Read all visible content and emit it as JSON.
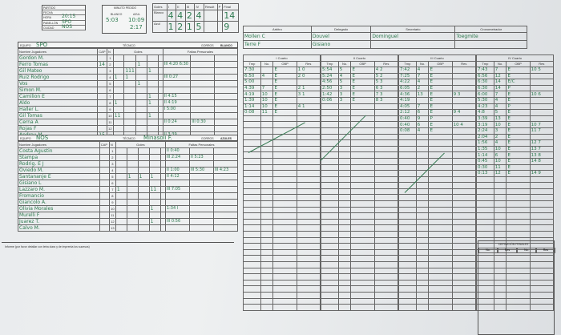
{
  "header": {
    "match_box": {
      "labels": [
        "Partido",
        "Fecha",
        "Hora",
        "Pabellón",
        "Ciudad"
      ],
      "values": [
        "",
        "",
        "20:15",
        "SPO",
        "NOS"
      ]
    },
    "tiempo_muerto": {
      "title": "Minuto Pedido",
      "cols": [
        "Blanco",
        "Azul"
      ],
      "values": [
        "5:03",
        "10:09",
        "",
        "2:17"
      ]
    },
    "goles": {
      "cols": [
        "Goles",
        "I",
        "II",
        "III",
        "IV",
        "Result",
        "P",
        "Final"
      ],
      "rows": [
        {
          "team": "Blanco",
          "q": [
            "4",
            "4",
            "2",
            "4"
          ],
          "final": "14"
        },
        {
          "team": "Azul",
          "q": [
            "1",
            "2",
            "1",
            "5"
          ],
          "final": "9"
        }
      ]
    }
  },
  "officials": {
    "cols": [
      "Arbitro",
      "Delegado",
      "Secretario",
      "Cronometrador"
    ],
    "values": [
      "Mollen C",
      "Douvel",
      "Dominguel",
      "Toegmite"
    ],
    "values2": [
      "Terre F",
      "Gisiano",
      "",
      ""
    ]
  },
  "team1": {
    "equipo_label": "Equipo",
    "name": "SPO",
    "tecnico_label": "Técnico",
    "tecnico": "",
    "gorros_label": "Gorros",
    "gorros": "Blanco",
    "headers": {
      "name": "Nombre Jugadores",
      "cap": "CAP",
      "n": "N",
      "goles": "Goles",
      "faltas": "Faltas Personales",
      "q": [
        "I",
        "II",
        "III",
        "IV",
        "P"
      ],
      "f": [
        "1",
        "2",
        "3"
      ]
    },
    "players": [
      {
        "n": "1",
        "name": "Gordon M.",
        "cap": "",
        "goals": [
          "",
          "",
          "",
          "",
          ""
        ],
        "fouls": [
          "",
          "",
          ""
        ]
      },
      {
        "n": "2",
        "name": "Ferro Tomas",
        "cap": "14",
        "goals": [
          "",
          "",
          "1",
          "",
          ""
        ],
        "fouls": [
          "III 4:20 6:30",
          "",
          ""
        ]
      },
      {
        "n": "3",
        "name": "Gil Mateo",
        "cap": "",
        "goals": [
          "",
          "111",
          "",
          "1",
          ""
        ],
        "fouls": [
          "",
          "",
          ""
        ]
      },
      {
        "n": "4",
        "name": "Ruiz Rodrigo",
        "cap": "",
        "goals": [
          "1",
          "1",
          "",
          "",
          ""
        ],
        "fouls": [
          "III 0:27",
          "",
          ""
        ]
      },
      {
        "n": "5",
        "name": "Vos",
        "cap": "",
        "goals": [
          "",
          "",
          "1",
          "",
          ""
        ],
        "fouls": [
          "",
          "",
          ""
        ]
      },
      {
        "n": "6",
        "name": "Simon M.",
        "cap": "",
        "goals": [
          "",
          "",
          "",
          "",
          ""
        ],
        "fouls": [
          "",
          "",
          ""
        ]
      },
      {
        "n": "7",
        "name": "Camilion E",
        "cap": "",
        "goals": [
          "",
          "",
          "",
          "1",
          ""
        ],
        "fouls": [
          "II 4:15",
          "",
          ""
        ]
      },
      {
        "n": "8",
        "name": "Aldo",
        "cap": "",
        "goals": [
          "1",
          "",
          "",
          "1",
          ""
        ],
        "fouls": [
          "II 4:19",
          "",
          ""
        ]
      },
      {
        "n": "9",
        "name": "Haller L.",
        "cap": "",
        "goals": [
          "",
          "",
          "",
          "",
          ""
        ],
        "fouls": [
          "I 5:00",
          "",
          ""
        ]
      },
      {
        "n": "10",
        "name": "Gil Tomas",
        "cap": "",
        "goals": [
          "11",
          "",
          "",
          "1",
          ""
        ],
        "fouls": [
          "",
          "",
          ""
        ]
      },
      {
        "n": "11",
        "name": "Cerna A",
        "cap": "",
        "goals": [
          "",
          "",
          "",
          "",
          ""
        ],
        "fouls": [
          "II 0:24",
          "III 0:30",
          ""
        ]
      },
      {
        "n": "12",
        "name": "Rojas F",
        "cap": "",
        "goals": [
          "",
          "",
          "",
          "",
          ""
        ],
        "fouls": [
          "",
          "",
          ""
        ]
      },
      {
        "n": "13",
        "name": "Andreu M.",
        "cap": "15",
        "goals": [
          "",
          "",
          "",
          "",
          ""
        ],
        "fouls": [
          "II 3:39",
          "",
          ""
        ]
      }
    ]
  },
  "team2": {
    "equipo_label": "Equipo",
    "name": "NOS",
    "tecnico_label": "Técnico",
    "tecnico": "Minasoli F.",
    "gorros_label": "Gorros",
    "gorros": "Azules",
    "players": [
      {
        "n": "1",
        "name": "Costa Agustin",
        "cap": "",
        "goals": [
          "",
          "",
          "",
          "",
          ""
        ],
        "fouls": [
          "II 0:40",
          "",
          ""
        ]
      },
      {
        "n": "2",
        "name": "Stampa",
        "cap": "",
        "goals": [
          "",
          "",
          "",
          "",
          ""
        ],
        "fouls": [
          "III 2:24",
          "II 5:23",
          ""
        ]
      },
      {
        "n": "3",
        "name": "Rodrig. E J",
        "cap": "",
        "goals": [
          "",
          "",
          "",
          "",
          ""
        ],
        "fouls": [
          "",
          "",
          ""
        ]
      },
      {
        "n": "4",
        "name": "Oviedo M.",
        "cap": "",
        "goals": [
          "",
          "",
          "",
          "",
          ""
        ],
        "fouls": [
          "II 1:00",
          "III 5:30",
          "III 4:23"
        ]
      },
      {
        "n": "5",
        "name": "Santananje E",
        "cap": "",
        "goals": [
          "",
          "1",
          "1",
          "1",
          ""
        ],
        "fouls": [
          "II 4:12",
          "",
          ""
        ]
      },
      {
        "n": "6",
        "name": "Gisiano L",
        "cap": "",
        "goals": [
          "",
          "",
          "",
          "",
          ""
        ],
        "fouls": [
          "",
          "",
          ""
        ]
      },
      {
        "n": "7",
        "name": "Lazzaro M.",
        "cap": "",
        "goals": [
          "1",
          "",
          "",
          "11",
          ""
        ],
        "fouls": [
          "III 7:05",
          "",
          ""
        ]
      },
      {
        "n": "8",
        "name": "Fromancio",
        "cap": "",
        "goals": [
          "",
          "",
          "",
          "",
          ""
        ],
        "fouls": [
          "",
          "",
          ""
        ]
      },
      {
        "n": "9",
        "name": "Giancolo A.",
        "cap": "",
        "goals": [
          "",
          "",
          "",
          "",
          ""
        ],
        "fouls": [
          "",
          "",
          ""
        ]
      },
      {
        "n": "10",
        "name": "Olivia Morales",
        "cap": "",
        "goals": [
          "",
          "",
          "",
          "1",
          ""
        ],
        "fouls": [
          "1:34 I",
          "",
          ""
        ]
      },
      {
        "n": "11",
        "name": "Murelli F",
        "cap": "",
        "goals": [
          "",
          "",
          "",
          "",
          ""
        ],
        "fouls": [
          "",
          "",
          ""
        ]
      },
      {
        "n": "12",
        "name": "Juarez T.",
        "cap": "",
        "goals": [
          "",
          "",
          "",
          "1",
          ""
        ],
        "fouls": [
          "III 0:56",
          "",
          ""
        ]
      },
      {
        "n": "13",
        "name": "Calvo M.",
        "cap": "",
        "goals": [
          "",
          "",
          "",
          "",
          ""
        ],
        "fouls": [
          "",
          "",
          ""
        ]
      }
    ]
  },
  "informe": "Informe (por favor detallar con letra clara y de imprenta los sucesos)",
  "quarters": {
    "cols": [
      "Tmp",
      "No.",
      "OBP",
      "Res"
    ],
    "items": [
      {
        "title": "I Cuarto",
        "rows": [
          [
            "7:30",
            "",
            "E",
            "1 0"
          ],
          [
            "6:50",
            "4",
            "E",
            "2 0"
          ],
          [
            "5:00",
            "",
            "E",
            ""
          ],
          [
            "4:39",
            "7",
            "E",
            "2 1"
          ],
          [
            "4:19",
            "10",
            "E",
            "3 1"
          ],
          [
            "1:39",
            "10",
            "E",
            ""
          ],
          [
            "1:14",
            "10",
            "E",
            "4 1"
          ],
          [
            "0:08",
            "11",
            "E",
            ""
          ]
        ]
      },
      {
        "title": "II Cuarto",
        "rows": [
          [
            "5:54",
            "5",
            "E",
            "4 2"
          ],
          [
            "5:24",
            "4",
            "E",
            "5 2"
          ],
          [
            "4:56",
            "5",
            "E",
            "5 3"
          ],
          [
            "2:50",
            "3",
            "E",
            "6 3"
          ],
          [
            "1:42",
            "3",
            "E",
            "7 3"
          ],
          [
            "0:06",
            "3",
            "E",
            "8 3"
          ]
        ]
      },
      {
        "title": "III Cuarto",
        "rows": [
          [
            "7:42",
            "4",
            "E",
            ""
          ],
          [
            "7:25",
            "7",
            "E",
            ""
          ],
          [
            "4:22",
            "4",
            "E",
            ""
          ],
          [
            "6:05",
            "2",
            "E",
            ""
          ],
          [
            "4:36",
            "13",
            "E",
            "9 3"
          ],
          [
            "4:19",
            "",
            "E",
            ""
          ],
          [
            "4:05",
            "7",
            "E",
            ""
          ],
          [
            "2:12",
            "6",
            "E",
            "9 4"
          ],
          [
            "0:40",
            "9",
            "P",
            ""
          ],
          [
            "0:40",
            "6",
            "E",
            "10 4"
          ],
          [
            "0:08",
            "4",
            "E",
            ""
          ]
        ]
      },
      {
        "title": "IV Cuarto",
        "rows": [
          [
            "7:43",
            "7",
            "E",
            "10 5"
          ],
          [
            "6:56",
            "12",
            "E",
            ""
          ],
          [
            "6:30",
            "14",
            "E/C",
            ""
          ],
          [
            "6:30",
            "14",
            "P",
            ""
          ],
          [
            "6:00",
            "7",
            "E",
            "10 6"
          ],
          [
            "5:30",
            "4",
            "E",
            ""
          ],
          [
            "4:23",
            "4",
            "P",
            ""
          ],
          [
            "4:8",
            "5",
            "E",
            ""
          ],
          [
            "3:39",
            "13",
            "E",
            ""
          ],
          [
            "3:19",
            "10",
            "E",
            "10 7"
          ],
          [
            "2:24",
            "3",
            "E",
            "11 7"
          ],
          [
            "2:04",
            "2",
            "E",
            ""
          ],
          [
            "1:56",
            "4",
            "E",
            "12 7"
          ],
          [
            "1:35",
            "10",
            "E",
            "13 7"
          ],
          [
            "1:14",
            "6",
            "E",
            "13 8"
          ],
          [
            "0:45",
            "10",
            "E",
            "14 8"
          ],
          [
            "0:30",
            "11",
            "E",
            ""
          ],
          [
            "0:13",
            "12",
            "E",
            "14 9"
          ]
        ]
      }
    ]
  },
  "penales": {
    "title": "Definición Penales",
    "cols": [
      "No.",
      "Res",
      "No.",
      "Res"
    ]
  },
  "colors": {
    "ink": "#2d7a4f",
    "paper": "#eef0f1",
    "lines": "#555555"
  }
}
